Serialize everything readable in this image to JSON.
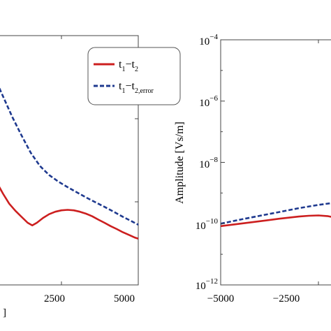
{
  "chart_data": [
    {
      "type": "line",
      "title": "",
      "xlabel": "",
      "ylabel": "",
      "xticks": [
        "2500",
        "5000"
      ],
      "partial_xlabel_fragment": "]",
      "x_range": [
        0,
        5000
      ],
      "y_scale": "log",
      "grid": false,
      "legend_position": "top-right",
      "legend": [
        {
          "label_main": "t",
          "sub1": "1",
          "dash": "−",
          "label_main2": "t",
          "sub2": "2",
          "sub2_extra": ""
        },
        {
          "label_main": "t",
          "sub1": "1",
          "dash": "−",
          "label_main2": "t",
          "sub2": "2,error",
          "sub2_extra": ""
        }
      ],
      "series": [
        {
          "name": "t1−t2",
          "color": "#cc1f1f",
          "style": "solid",
          "x": [
            0,
            125,
            250,
            400,
            600,
            800,
            1000,
            1200,
            1400,
            1550,
            1700,
            1900,
            2100,
            2300,
            2500,
            2700,
            2900,
            3100,
            3300,
            3500,
            3700,
            3900,
            4100,
            4300,
            4500,
            4700,
            4900,
            5000
          ],
          "y": [
            3.2e-10,
            2.7e-10,
            2.3e-10,
            1.7e-10,
            1.25e-10,
            9.5e-11,
            7.8e-11,
            6.6e-11,
            5.6e-11,
            5.2e-11,
            5.6e-11,
            6.4e-11,
            7.1e-11,
            7.6e-11,
            7.9e-11,
            8e-11,
            7.9e-11,
            7.6e-11,
            7.2e-11,
            6.7e-11,
            6.1e-11,
            5.6e-11,
            5.1e-11,
            4.7e-11,
            4.3e-11,
            4e-11,
            3.7e-11,
            3.6e-11
          ]
        },
        {
          "name": "t1−t2,error",
          "color": "#1f3a8f",
          "style": "dashed",
          "x": [
            0,
            300,
            600,
            900,
            1200,
            1500,
            1800,
            2100,
            2400,
            2700,
            3000,
            3300,
            3600,
            3900,
            4200,
            4500,
            4800,
            5000
          ],
          "y": [
            5e-09,
            3.3e-09,
            1.85e-09,
            1.05e-09,
            6.3e-10,
            3.9e-10,
            2.7e-10,
            2.1e-10,
            1.75e-10,
            1.5e-10,
            1.3e-10,
            1.13e-10,
            9.9e-11,
            8.7e-11,
            7.6e-11,
            6.6e-11,
            5.8e-11,
            5.3e-11
          ]
        }
      ]
    },
    {
      "type": "line",
      "title": "",
      "xlabel": "",
      "ylabel": "Amplitude [Vs/m]",
      "xticks": [
        "−5000",
        "−2500"
      ],
      "x_range": [
        -5000,
        0
      ],
      "y_scale": "log",
      "ylim": [
        1e-12,
        0.0001
      ],
      "yticks": [
        {
          "base": "10",
          "exp": "−4"
        },
        {
          "base": "10",
          "exp": "−6"
        },
        {
          "base": "10",
          "exp": "−8"
        },
        {
          "base": "10",
          "exp": "−10"
        },
        {
          "base": "10",
          "exp": "−12"
        }
      ],
      "grid": false,
      "series": [
        {
          "name": "t1−t2",
          "color": "#cc1f1f",
          "style": "solid",
          "x": [
            -5000,
            -4500,
            -4000,
            -3500,
            -3000,
            -2750,
            -2500,
            -2250,
            -2000,
            -1750,
            -1500
          ],
          "y": [
            8.3e-11,
            1e-10,
            1.2e-10,
            1.45e-10,
            1.7e-10,
            1.8e-10,
            1.85e-10,
            1.75e-10,
            1.5e-10,
            1.25e-10,
            1.05e-10
          ]
        },
        {
          "name": "t1−t2,error",
          "color": "#1f3a8f",
          "style": "dashed",
          "x": [
            -5000,
            -4500,
            -4000,
            -3500,
            -3000,
            -2500,
            -2000,
            -1750,
            -1500
          ],
          "y": [
            1e-10,
            1.35e-10,
            1.8e-10,
            2.4e-10,
            3.2e-10,
            4.1e-10,
            5e-10,
            5.3e-10,
            5.4e-10
          ]
        }
      ]
    }
  ]
}
